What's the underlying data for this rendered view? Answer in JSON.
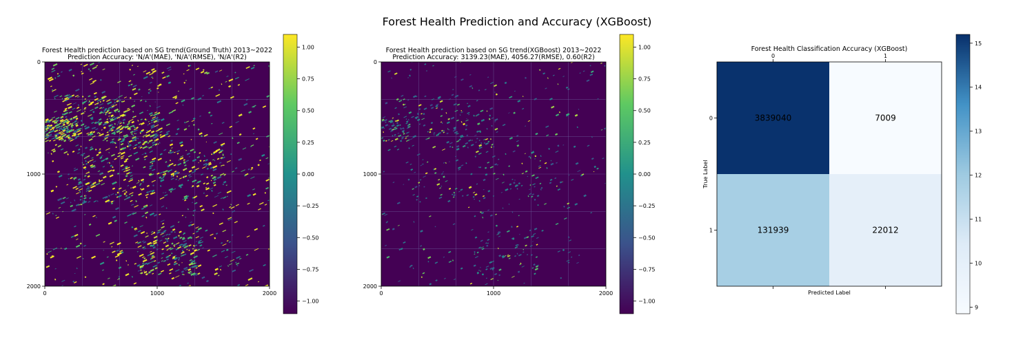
{
  "suptitle": "Forest Health Prediction and Accuracy (XGBoost)",
  "colors": {
    "viridis": [
      "#440154",
      "#3b528b",
      "#21918c",
      "#5ec962",
      "#fde725"
    ],
    "blues": [
      "#f7fbff",
      "#deebf7",
      "#9ecae1",
      "#4292c6",
      "#08306b"
    ],
    "grid": "#6a5d9a"
  },
  "chart_data": [
    {
      "type": "heatmap",
      "title_line1": "Forest Health prediction based on SG trend(Ground Truth) 2013~2022",
      "title_line2": "Prediction Accuracy: 'N/A'(MAE), 'N/A'(RMSE), 'N/A'(R2)",
      "xlim": [
        0,
        2000
      ],
      "ylim": [
        2000,
        0
      ],
      "xticks": [
        "0",
        "1000",
        "2000"
      ],
      "yticks": [
        "0",
        "1000",
        "2000"
      ],
      "colorbar_range": [
        -1.1,
        1.1
      ],
      "colorbar_ticks": [
        "1.00",
        "0.75",
        "0.50",
        "0.25",
        "0.00",
        "−0.25",
        "−0.50",
        "−0.75",
        "−1.00"
      ],
      "colormap": "viridis",
      "background_value": -1.0,
      "grid": true
    },
    {
      "type": "heatmap",
      "title_line1": "Forest Health prediction based on SG trend(XGBoost) 2013~2022",
      "title_line2": "Prediction Accuracy: 3139.23(MAE), 4056.27(RMSE), 0.60(R2)",
      "xlim": [
        0,
        2000
      ],
      "ylim": [
        2000,
        0
      ],
      "xticks": [
        "0",
        "1000",
        "2000"
      ],
      "yticks": [
        "0",
        "1000",
        "2000"
      ],
      "colorbar_range": [
        -1.1,
        1.1
      ],
      "colorbar_ticks": [
        "1.00",
        "0.75",
        "0.50",
        "0.25",
        "0.00",
        "−0.25",
        "−0.50",
        "−0.75",
        "−1.00"
      ],
      "colormap": "viridis",
      "background_value": -1.0,
      "grid": true
    },
    {
      "type": "heatmap",
      "title": "Forest Health Classification Accuracy (XGBoost)",
      "xlabel": "Predicted Label",
      "ylabel": "True Label",
      "xticks": [
        "0",
        "1"
      ],
      "yticks": [
        "0",
        "1"
      ],
      "matrix": [
        [
          3839040,
          7009
        ],
        [
          131939,
          22012
        ]
      ],
      "color_scale": "log",
      "colorbar_range": [
        8.85,
        15.2
      ],
      "colorbar_ticks": [
        "15",
        "14",
        "13",
        "12",
        "11",
        "10",
        "9"
      ],
      "colormap": "Blues"
    }
  ]
}
